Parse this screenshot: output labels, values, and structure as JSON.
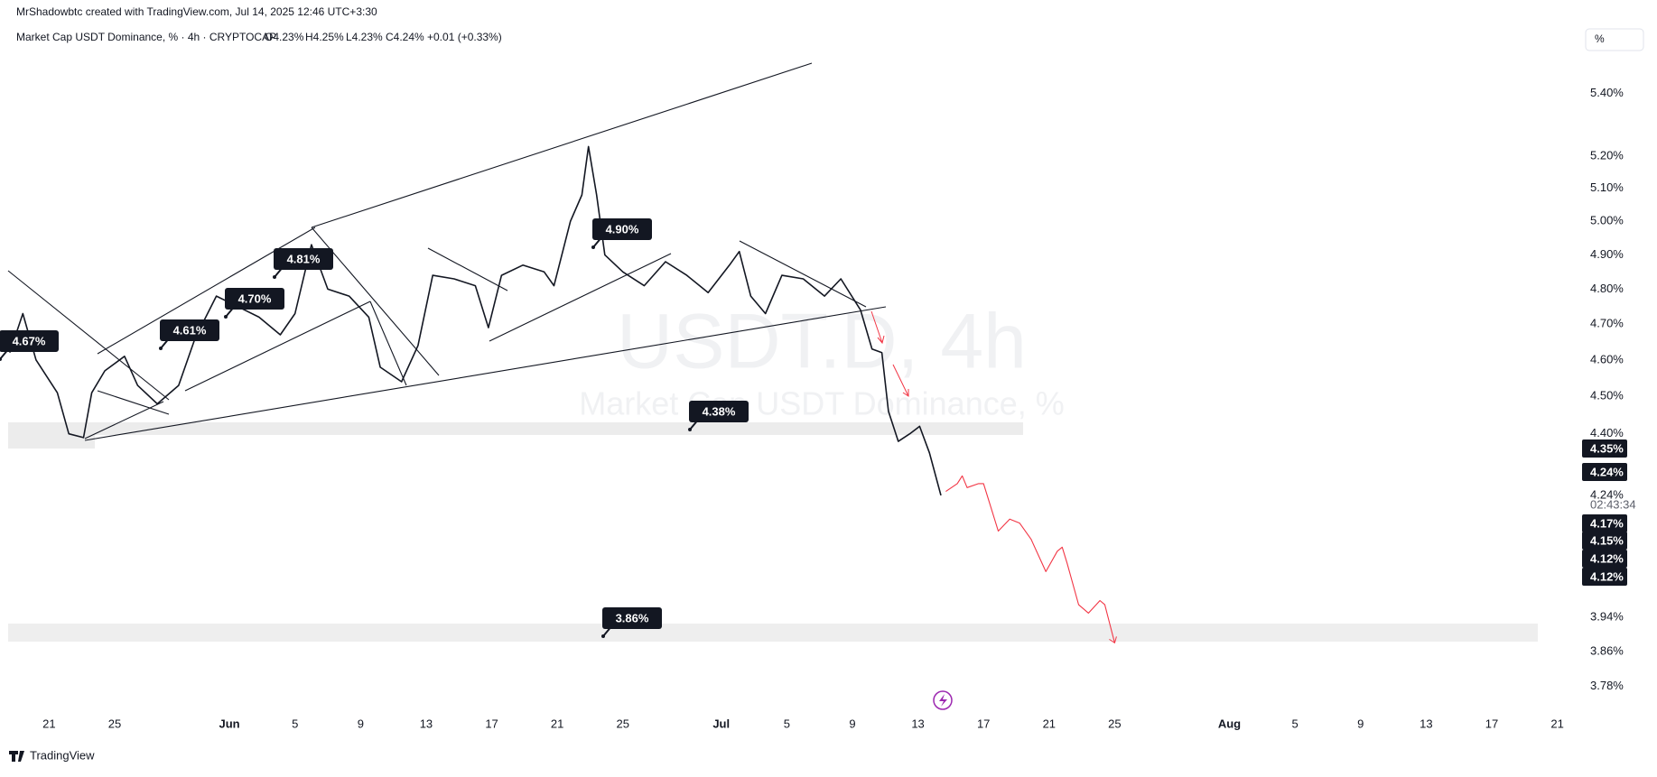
{
  "header": {
    "credit": "MrShadowbtc created with TradingView.com, Jul 14, 2025 12:46 UTC+3:30",
    "symbol": "Market Cap USDT Dominance, % · 4h · CRYPTOCAP",
    "open": "O4.23%",
    "high": "H4.25%",
    "low": "L4.23%",
    "close": "C4.24%",
    "change": "+0.01 (+0.33%)",
    "scale_button": "%"
  },
  "watermark": {
    "symbol": "USDT.D, 4h",
    "name": "Market Cap USDT Dominance, %"
  },
  "badges": [
    "4.67%",
    "4.61%",
    "4.70%",
    "4.81%",
    "4.90%",
    "4.38%",
    "3.86%"
  ],
  "price_tags": [
    "4.35%",
    "4.24%",
    "4.17%",
    "4.15%",
    "4.12%",
    "4.12%"
  ],
  "countdown": "02:43:34",
  "footer": {
    "brand": "TradingView"
  },
  "chart_data": {
    "type": "line",
    "log_scale": true,
    "xlim": [
      -2.5,
      93.4
    ],
    "ylim": [
      5.55,
      3.73
    ],
    "xticks": [
      {
        "value": 0,
        "label": "21"
      },
      {
        "value": 4,
        "label": "25"
      },
      {
        "value": 11,
        "label": "Jun"
      },
      {
        "value": 15,
        "label": "5"
      },
      {
        "value": 19,
        "label": "9"
      },
      {
        "value": 23,
        "label": "13"
      },
      {
        "value": 27,
        "label": "17"
      },
      {
        "value": 31,
        "label": "21"
      },
      {
        "value": 35,
        "label": "25"
      },
      {
        "value": 41,
        "label": "Jul"
      },
      {
        "value": 45,
        "label": "5"
      },
      {
        "value": 49,
        "label": "9"
      },
      {
        "value": 53,
        "label": "13"
      },
      {
        "value": 57,
        "label": "17"
      },
      {
        "value": 61,
        "label": "21"
      },
      {
        "value": 65,
        "label": "25"
      },
      {
        "value": 72,
        "label": "Aug"
      },
      {
        "value": 76,
        "label": "5"
      },
      {
        "value": 80,
        "label": "9"
      },
      {
        "value": 84,
        "label": "13"
      },
      {
        "value": 88,
        "label": "17"
      },
      {
        "value": 92,
        "label": "21"
      }
    ],
    "yticks": [
      {
        "value": 5.4,
        "label": "5.40%"
      },
      {
        "value": 5.2,
        "label": "5.20%"
      },
      {
        "value": 5.1,
        "label": "5.10%"
      },
      {
        "value": 5.0,
        "label": "5.00%"
      },
      {
        "value": 4.9,
        "label": "4.90%"
      },
      {
        "value": 4.8,
        "label": "4.80%"
      },
      {
        "value": 4.7,
        "label": "4.70%"
      },
      {
        "value": 4.6,
        "label": "4.60%"
      },
      {
        "value": 4.5,
        "label": "4.50%"
      },
      {
        "value": 4.4,
        "label": "4.40%"
      },
      {
        "value": 4.24,
        "label": "4.24%"
      },
      {
        "value": 3.94,
        "label": "3.94%"
      },
      {
        "value": 3.86,
        "label": "3.86%"
      },
      {
        "value": 3.78,
        "label": "3.78%"
      }
    ],
    "price": {
      "color": "#131722",
      "x": [
        -2.4,
        -1.6,
        -0.8,
        0.5,
        1.2,
        2.1,
        2.6,
        3.4,
        4.6,
        5.4,
        6.6,
        7.9,
        8.9,
        10.2,
        11.5,
        12.8,
        14.1,
        15.0,
        16.0,
        17.0,
        18.3,
        19.5,
        20.2,
        21.5,
        22.5,
        23.4,
        24.7,
        26.0,
        26.8,
        27.6,
        28.9,
        30.2,
        30.8,
        31.8,
        32.5,
        32.9,
        33.4,
        33.9,
        35.0,
        36.3,
        37.6,
        38.9,
        40.2,
        41.5,
        42.1,
        42.8,
        43.7,
        44.7,
        46.0,
        47.3,
        48.3,
        49.5,
        50.2,
        50.8,
        51.2,
        51.8,
        52.5,
        53.1,
        53.7,
        54.4
      ],
      "values": [
        4.62,
        4.73,
        4.6,
        4.51,
        4.4,
        4.39,
        4.51,
        4.57,
        4.61,
        4.53,
        4.48,
        4.53,
        4.66,
        4.78,
        4.75,
        4.72,
        4.67,
        4.73,
        4.93,
        4.8,
        4.78,
        4.72,
        4.58,
        4.54,
        4.64,
        4.84,
        4.83,
        4.81,
        4.69,
        4.84,
        4.87,
        4.85,
        4.81,
        5.0,
        5.08,
        5.23,
        5.08,
        4.9,
        4.85,
        4.81,
        4.88,
        4.84,
        4.79,
        4.87,
        4.91,
        4.78,
        4.73,
        4.84,
        4.83,
        4.78,
        4.83,
        4.74,
        4.63,
        4.62,
        4.46,
        4.38,
        4.4,
        4.42,
        4.35,
        4.24
      ]
    },
    "projection": {
      "color": "#f23645",
      "x": [
        54.7,
        55.4,
        55.7,
        56.0,
        56.7,
        57.0,
        57.3,
        57.9,
        58.6,
        59.2,
        59.9,
        60.8,
        61.5,
        61.8,
        62.1,
        62.8,
        63.4,
        64.1,
        64.4,
        65.0
      ],
      "values": [
        4.25,
        4.27,
        4.29,
        4.26,
        4.27,
        4.27,
        4.23,
        4.15,
        4.18,
        4.17,
        4.13,
        4.05,
        4.1,
        4.11,
        4.07,
        3.97,
        3.95,
        3.98,
        3.97,
        3.88
      ]
    }
  }
}
